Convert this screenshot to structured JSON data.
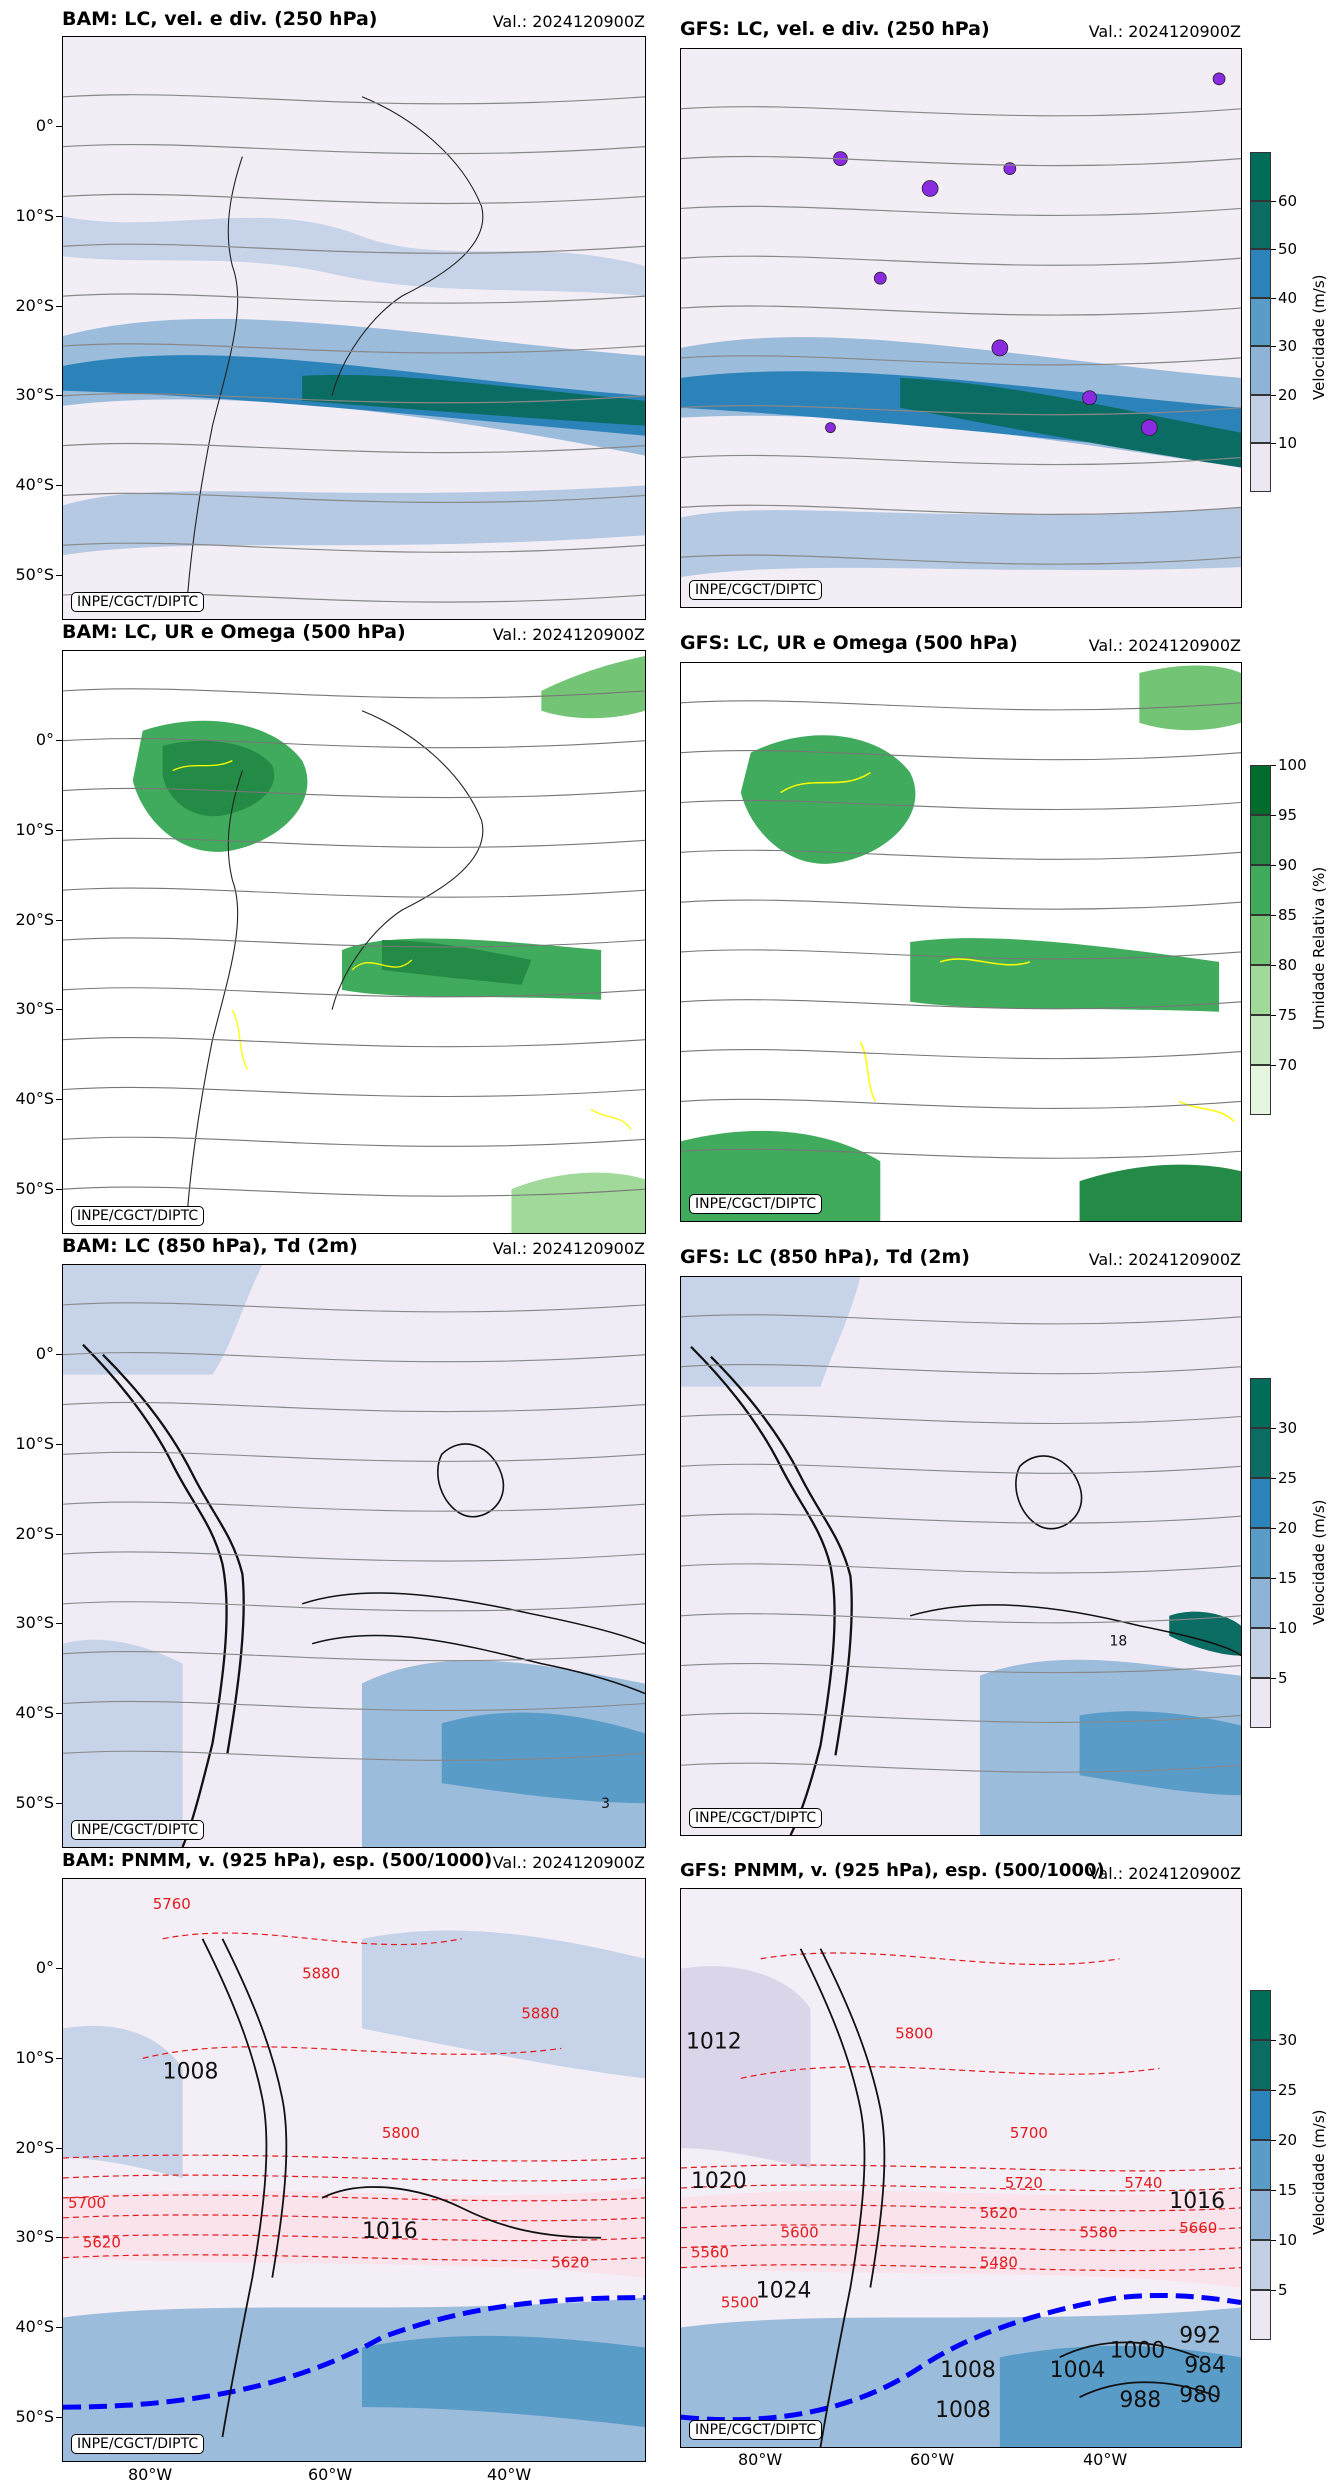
{
  "valid_prefix": "Val.: 2024120900Z",
  "credit": "INPE/CGCT/DIPTC",
  "lat_labels": [
    "0°",
    "10°S",
    "20°S",
    "30°S",
    "40°S",
    "50°S"
  ],
  "lon_labels": [
    "80°W",
    "60°W",
    "40°W"
  ],
  "panels": {
    "bam250": {
      "title": "BAM: LC, vel. e div. (250 hPa)",
      "valid": "Val.: 2024120900Z"
    },
    "gfs250": {
      "title": "GFS: LC, vel. e div. (250 hPa)",
      "valid": "Val.: 2024120900Z"
    },
    "bam500": {
      "title": "BAM: LC, UR e Omega (500 hPa)",
      "valid": "Val.: 2024120900Z"
    },
    "gfs500": {
      "title": "GFS: LC, UR e Omega (500 hPa)",
      "valid": "Val.: 2024120900Z"
    },
    "bam850": {
      "title": "BAM: LC (850 hPa), Td (2m)",
      "valid": "Val.: 2024120900Z"
    },
    "gfs850": {
      "title": "GFS: LC (850 hPa), Td (2m)",
      "valid": "Val.: 2024120900Z"
    },
    "bampnmm": {
      "title": "BAM: PNMM, v. (925 hPa), esp. (500/1000)",
      "valid": "Val.: 2024120900Z"
    },
    "gfspnmm": {
      "title": "GFS: PNMM, v. (925 hPa), esp. (500/1000)",
      "valid": "Val.: 2024120900Z"
    }
  },
  "colorbars": {
    "vel250": {
      "title": "Velocidade (m/s)",
      "ticks": [
        "10",
        "20",
        "30",
        "40",
        "50",
        "60"
      ],
      "colors": [
        "#ece7f2",
        "#c2cfe5",
        "#8fb3d6",
        "#5a9cc8",
        "#2b83ba",
        "#0b6c63",
        "#006d5b"
      ]
    },
    "ur500": {
      "title": "Umidade Relativa (%)",
      "ticks": [
        "70",
        "75",
        "80",
        "85",
        "90",
        "95",
        "100"
      ],
      "colors": [
        "#e5f5e0",
        "#c7e9c0",
        "#a1d99b",
        "#74c476",
        "#41ab5d",
        "#238b45",
        "#006d2c"
      ]
    },
    "vel850": {
      "title": "Velocidade (m/s)",
      "ticks": [
        "5",
        "10",
        "15",
        "20",
        "25",
        "30"
      ],
      "colors": [
        "#ece7f2",
        "#c2cfe5",
        "#8fb3d6",
        "#5a9cc8",
        "#2b83ba",
        "#0b6c63",
        "#006d5b"
      ]
    },
    "velpnmm": {
      "title": "Velocidade (m/s)",
      "ticks": [
        "5",
        "10",
        "15",
        "20",
        "25",
        "30"
      ],
      "colors": [
        "#ece7f2",
        "#c2cfe5",
        "#8fb3d6",
        "#5a9cc8",
        "#2b83ba",
        "#0b6c63",
        "#006d5b"
      ]
    }
  },
  "contour_labels": {
    "bampnmm": [
      "5760",
      "1008",
      "5700",
      "5620",
      "5800",
      "5880",
      "1016",
      "5880",
      "5620"
    ],
    "gfspnmm": [
      "1012",
      "1020",
      "1024",
      "5800",
      "1008",
      "5740",
      "1016",
      "5720",
      "5560",
      "5600",
      "1000",
      "992",
      "984",
      "980",
      "1004",
      "988",
      "1008",
      "5580",
      "5480",
      "5500",
      "5700",
      "5620",
      "5660"
    ]
  },
  "contour_label_850": "3",
  "contour_label_850g": "18"
}
